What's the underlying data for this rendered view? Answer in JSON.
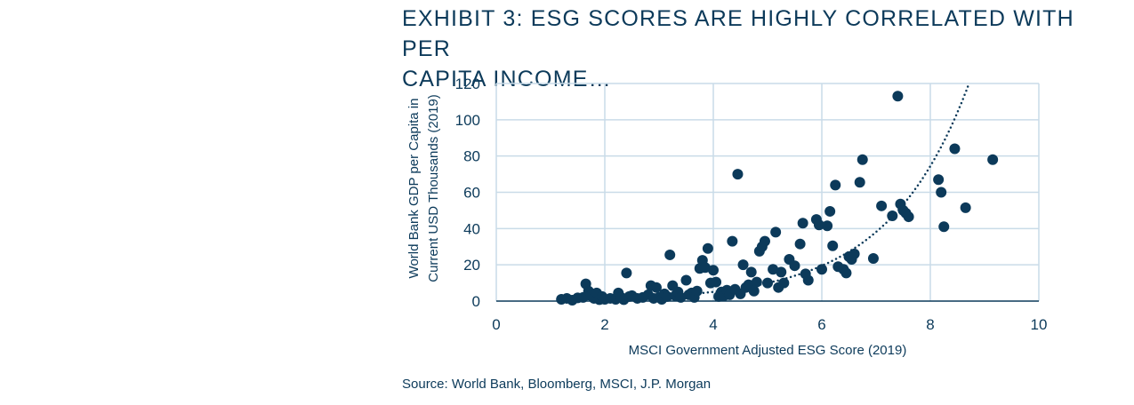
{
  "title_lines": [
    "EXHIBIT 3: ESG SCORES ARE HIGHLY CORRELATED WITH PER",
    "CAPITA INCOME…"
  ],
  "source": "Source: World Bank, Bloomberg, MSCI, J.P. Morgan",
  "colors": {
    "marker": "#0c3a5a",
    "grid": "#c9dbe8",
    "text": "#0c3a5a"
  },
  "chart_data": {
    "type": "scatter",
    "title": "EXHIBIT 3: ESG SCORES ARE HIGHLY CORRELATED WITH PER CAPITA INCOME…",
    "xlabel": "MSCI Government Adjusted ESG Score (2019)",
    "ylabel_lines": [
      "World Bank GDP per Capita in",
      "Current USD Thousands (2019)"
    ],
    "xlim": [
      0,
      10
    ],
    "ylim": [
      0,
      120
    ],
    "xticks": [
      "0",
      "2",
      "4",
      "6",
      "8",
      "10"
    ],
    "yticks": [
      "0",
      "20",
      "40",
      "60",
      "80",
      "100",
      "120"
    ],
    "grid": true,
    "trendline": {
      "type": "exponential",
      "a": 0.35,
      "b": 0.67,
      "style": "dotted"
    },
    "points": [
      [
        1.2,
        1
      ],
      [
        1.3,
        1.5
      ],
      [
        1.4,
        0.5
      ],
      [
        1.5,
        1.8
      ],
      [
        1.6,
        2
      ],
      [
        1.65,
        9.5
      ],
      [
        1.7,
        5.5
      ],
      [
        1.75,
        3
      ],
      [
        1.8,
        1.5
      ],
      [
        1.85,
        4.5
      ],
      [
        1.9,
        0.8
      ],
      [
        1.95,
        2.5
      ],
      [
        2.0,
        1
      ],
      [
        2.1,
        1.5
      ],
      [
        2.2,
        1
      ],
      [
        2.25,
        4.5
      ],
      [
        2.3,
        2
      ],
      [
        2.35,
        0.8
      ],
      [
        2.4,
        15.5
      ],
      [
        2.45,
        2.5
      ],
      [
        2.5,
        3
      ],
      [
        2.6,
        1.5
      ],
      [
        2.7,
        2
      ],
      [
        2.8,
        3.5
      ],
      [
        2.85,
        8.5
      ],
      [
        2.9,
        1.5
      ],
      [
        2.95,
        7.5
      ],
      [
        3.0,
        2
      ],
      [
        3.05,
        1
      ],
      [
        3.1,
        4
      ],
      [
        3.15,
        2.5
      ],
      [
        3.2,
        25.5
      ],
      [
        3.25,
        8.5
      ],
      [
        3.3,
        3
      ],
      [
        3.35,
        5
      ],
      [
        3.4,
        2
      ],
      [
        3.5,
        11.5
      ],
      [
        3.55,
        3.5
      ],
      [
        3.6,
        4.5
      ],
      [
        3.65,
        2
      ],
      [
        3.7,
        5.5
      ],
      [
        3.75,
        18
      ],
      [
        3.8,
        22.5
      ],
      [
        3.85,
        18.5
      ],
      [
        3.9,
        29
      ],
      [
        3.95,
        10
      ],
      [
        4.0,
        17
      ],
      [
        4.05,
        10.5
      ],
      [
        4.1,
        2.5
      ],
      [
        4.15,
        5
      ],
      [
        4.2,
        3
      ],
      [
        4.25,
        6
      ],
      [
        4.3,
        3.5
      ],
      [
        4.35,
        33
      ],
      [
        4.4,
        6.5
      ],
      [
        4.45,
        70
      ],
      [
        4.5,
        4
      ],
      [
        4.55,
        20
      ],
      [
        4.6,
        7.5
      ],
      [
        4.65,
        9
      ],
      [
        4.7,
        16
      ],
      [
        4.75,
        5.5
      ],
      [
        4.8,
        10.5
      ],
      [
        4.85,
        27.5
      ],
      [
        4.9,
        30
      ],
      [
        4.95,
        33
      ],
      [
        5.0,
        10
      ],
      [
        5.1,
        17.5
      ],
      [
        5.15,
        38
      ],
      [
        5.2,
        7.5
      ],
      [
        5.25,
        16
      ],
      [
        5.3,
        10
      ],
      [
        5.4,
        23
      ],
      [
        5.5,
        19.5
      ],
      [
        5.6,
        31.5
      ],
      [
        5.65,
        43
      ],
      [
        5.7,
        15
      ],
      [
        5.75,
        11.5
      ],
      [
        5.9,
        45
      ],
      [
        5.95,
        42
      ],
      [
        6.0,
        17.5
      ],
      [
        6.1,
        41.5
      ],
      [
        6.15,
        49.5
      ],
      [
        6.2,
        30.5
      ],
      [
        6.25,
        64
      ],
      [
        6.3,
        19
      ],
      [
        6.4,
        17.5
      ],
      [
        6.45,
        15.5
      ],
      [
        6.5,
        24.5
      ],
      [
        6.55,
        23
      ],
      [
        6.6,
        26
      ],
      [
        6.7,
        65.5
      ],
      [
        6.75,
        78
      ],
      [
        6.95,
        23.5
      ],
      [
        7.1,
        52.5
      ],
      [
        7.3,
        47
      ],
      [
        7.4,
        113
      ],
      [
        7.45,
        53.5
      ],
      [
        7.5,
        50
      ],
      [
        7.55,
        48.5
      ],
      [
        7.6,
        46.5
      ],
      [
        8.15,
        67
      ],
      [
        8.2,
        60
      ],
      [
        8.25,
        41
      ],
      [
        8.45,
        84
      ],
      [
        8.65,
        51.5
      ],
      [
        9.15,
        78
      ]
    ]
  }
}
